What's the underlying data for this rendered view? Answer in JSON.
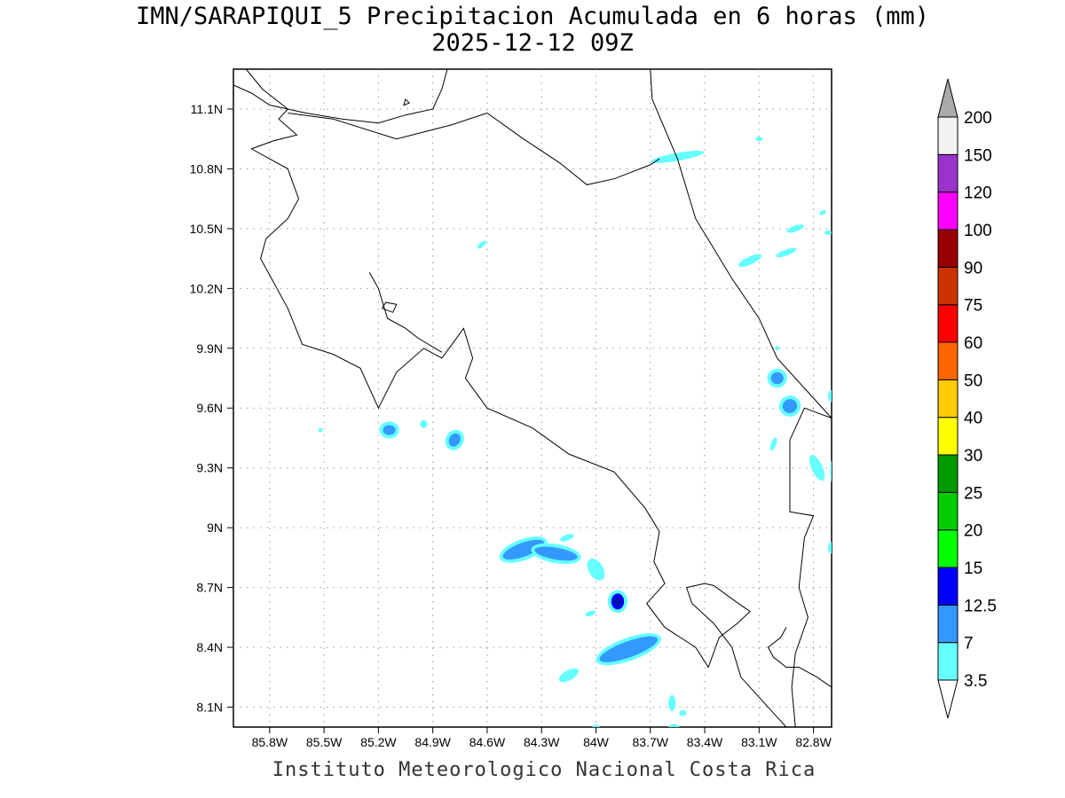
{
  "map": {
    "title": "IMN/SARAPIQUI_5 Precipitacion Acumulada en 6 horas (mm)",
    "subtitle": "2025-12-12 09Z",
    "credit": "Instituto Meteorologico Nacional Costa Rica",
    "extent": {
      "lon": [
        -86.0,
        -82.7
      ],
      "lat": [
        8.0,
        11.3
      ]
    },
    "lon_ticks": [
      {
        "value": -85.8,
        "label": "85.8W"
      },
      {
        "value": -85.5,
        "label": "85.5W"
      },
      {
        "value": -85.2,
        "label": "85.2W"
      },
      {
        "value": -84.9,
        "label": "84.9W"
      },
      {
        "value": -84.6,
        "label": "84.6W"
      },
      {
        "value": -84.3,
        "label": "84.3W"
      },
      {
        "value": -84.0,
        "label": "84W"
      },
      {
        "value": -83.7,
        "label": "83.7W"
      },
      {
        "value": -83.4,
        "label": "83.4W"
      },
      {
        "value": -83.1,
        "label": "83.1W"
      },
      {
        "value": -82.8,
        "label": "82.8W"
      }
    ],
    "lat_ticks": [
      {
        "value": 11.1,
        "label": "11.1N"
      },
      {
        "value": 10.8,
        "label": "10.8N"
      },
      {
        "value": 10.5,
        "label": "10.5N"
      },
      {
        "value": 10.2,
        "label": "10.2N"
      },
      {
        "value": 9.9,
        "label": "9.9N"
      },
      {
        "value": 9.6,
        "label": "9.6N"
      },
      {
        "value": 9.3,
        "label": "9.3N"
      },
      {
        "value": 9.0,
        "label": "9N"
      },
      {
        "value": 8.7,
        "label": "8.7N"
      },
      {
        "value": 8.4,
        "label": "8.4N"
      },
      {
        "value": 8.1,
        "label": "8.1N"
      }
    ],
    "grid": true
  },
  "colorbar": {
    "levels": [
      "3.5",
      "7",
      "12.5",
      "15",
      "20",
      "25",
      "30",
      "40",
      "50",
      "60",
      "75",
      "90",
      "100",
      "120",
      "150",
      "200"
    ],
    "colors": [
      "#66ffff",
      "#3399ff",
      "#0000ff",
      "#00ff00",
      "#00cc00",
      "#009900",
      "#ffff00",
      "#ffcc00",
      "#ff6600",
      "#ff0000",
      "#cc3300",
      "#990000",
      "#ff00ff",
      "#9933cc",
      "#f2f2f2",
      "#aaaaaa"
    ],
    "below_color": "#ffffff",
    "above_color": "#aaaaaa"
  },
  "precip_cells": [
    {
      "lon": -83.55,
      "lat": 10.86,
      "rx": 0.15,
      "ry": 0.02,
      "rot": -10,
      "class": "3.5"
    },
    {
      "lon": -83.1,
      "lat": 10.95,
      "rx": 0.02,
      "ry": 0.01,
      "rot": 0,
      "class": "3.5"
    },
    {
      "lon": -82.9,
      "lat": 10.5,
      "rx": 0.05,
      "ry": 0.015,
      "rot": -20,
      "class": "3.5"
    },
    {
      "lon": -82.75,
      "lat": 10.58,
      "rx": 0.02,
      "ry": 0.01,
      "rot": -30,
      "class": "3.5"
    },
    {
      "lon": -83.15,
      "lat": 10.34,
      "rx": 0.07,
      "ry": 0.02,
      "rot": -25,
      "class": "3.5"
    },
    {
      "lon": -82.95,
      "lat": 10.38,
      "rx": 0.06,
      "ry": 0.015,
      "rot": -20,
      "class": "3.5"
    },
    {
      "lon": -82.72,
      "lat": 10.48,
      "rx": 0.02,
      "ry": 0.01,
      "rot": 0,
      "class": "3.5"
    },
    {
      "lon": -84.63,
      "lat": 10.42,
      "rx": 0.03,
      "ry": 0.012,
      "rot": -40,
      "class": "3.5"
    },
    {
      "lon": -83.0,
      "lat": 9.75,
      "rx": 0.035,
      "ry": 0.03,
      "rot": 0,
      "class": "7"
    },
    {
      "lon": -83.0,
      "lat": 9.9,
      "rx": 0.01,
      "ry": 0.01,
      "rot": 0,
      "class": "3.5"
    },
    {
      "lon": -82.93,
      "lat": 9.61,
      "rx": 0.04,
      "ry": 0.035,
      "rot": -20,
      "class": "7"
    },
    {
      "lon": -83.02,
      "lat": 9.42,
      "rx": 0.015,
      "ry": 0.035,
      "rot": 20,
      "class": "3.5"
    },
    {
      "lon": -82.78,
      "lat": 9.3,
      "rx": 0.03,
      "ry": 0.07,
      "rot": -25,
      "class": "3.5"
    },
    {
      "lon": -82.66,
      "lat": 9.25,
      "rx": 0.025,
      "ry": 0.09,
      "rot": -10,
      "class": "7"
    },
    {
      "lon": -82.7,
      "lat": 9.66,
      "rx": 0.02,
      "ry": 0.03,
      "rot": 0,
      "class": "3.5"
    },
    {
      "lon": -82.7,
      "lat": 8.9,
      "rx": 0.02,
      "ry": 0.03,
      "rot": 0,
      "class": "3.5"
    },
    {
      "lon": -85.14,
      "lat": 9.49,
      "rx": 0.035,
      "ry": 0.025,
      "rot": 0,
      "class": "7"
    },
    {
      "lon": -84.95,
      "lat": 9.52,
      "rx": 0.02,
      "ry": 0.02,
      "rot": 0,
      "class": "3.5"
    },
    {
      "lon": -84.78,
      "lat": 9.44,
      "rx": 0.03,
      "ry": 0.035,
      "rot": 30,
      "class": "7"
    },
    {
      "lon": -85.52,
      "lat": 9.49,
      "rx": 0.008,
      "ry": 0.008,
      "rot": 0,
      "class": "3.5"
    },
    {
      "lon": -84.4,
      "lat": 8.89,
      "rx": 0.12,
      "ry": 0.035,
      "rot": -20,
      "class": "7"
    },
    {
      "lon": -84.22,
      "lat": 8.87,
      "rx": 0.12,
      "ry": 0.03,
      "rot": 10,
      "class": "7"
    },
    {
      "lon": -84.16,
      "lat": 8.95,
      "rx": 0.04,
      "ry": 0.015,
      "rot": -20,
      "class": "3.5"
    },
    {
      "lon": -84.0,
      "lat": 8.79,
      "rx": 0.04,
      "ry": 0.06,
      "rot": -30,
      "class": "3.5"
    },
    {
      "lon": -83.88,
      "lat": 8.63,
      "rx": 0.035,
      "ry": 0.04,
      "rot": 0,
      "class": "12.5"
    },
    {
      "lon": -84.03,
      "lat": 8.57,
      "rx": 0.03,
      "ry": 0.012,
      "rot": -20,
      "class": "3.5"
    },
    {
      "lon": -83.82,
      "lat": 8.39,
      "rx": 0.17,
      "ry": 0.04,
      "rot": -20,
      "class": "7"
    },
    {
      "lon": -84.15,
      "lat": 8.26,
      "rx": 0.06,
      "ry": 0.025,
      "rot": -30,
      "class": "3.5"
    },
    {
      "lon": -83.58,
      "lat": 8.12,
      "rx": 0.02,
      "ry": 0.04,
      "rot": 0,
      "class": "3.5"
    },
    {
      "lon": -83.52,
      "lat": 8.07,
      "rx": 0.02,
      "ry": 0.015,
      "rot": 0,
      "class": "3.5"
    },
    {
      "lon": -83.57,
      "lat": 8.0,
      "rx": 0.03,
      "ry": 0.015,
      "rot": 0,
      "class": "3.5"
    },
    {
      "lon": -84.0,
      "lat": 8.0,
      "rx": 0.02,
      "ry": 0.01,
      "rot": 0,
      "class": "3.5"
    }
  ],
  "coastlines": [
    {
      "name": "pacific-coast",
      "points": [
        [
          -85.93,
          11.3
        ],
        [
          -85.84,
          11.2
        ],
        [
          -85.7,
          11.1
        ],
        [
          -85.75,
          11.05
        ],
        [
          -85.65,
          10.97
        ],
        [
          -85.78,
          10.94
        ],
        [
          -85.9,
          10.9
        ],
        [
          -85.7,
          10.8
        ],
        [
          -85.64,
          10.65
        ],
        [
          -85.7,
          10.55
        ],
        [
          -85.82,
          10.45
        ],
        [
          -85.85,
          10.35
        ],
        [
          -85.76,
          10.2
        ],
        [
          -85.7,
          10.1
        ],
        [
          -85.62,
          9.92
        ],
        [
          -85.45,
          9.87
        ],
        [
          -85.3,
          9.8
        ],
        [
          -85.2,
          9.6
        ],
        [
          -85.1,
          9.78
        ],
        [
          -84.95,
          9.9
        ],
        [
          -84.85,
          9.85
        ],
        [
          -84.73,
          10.0
        ],
        [
          -84.68,
          9.85
        ],
        [
          -84.72,
          9.75
        ],
        [
          -84.6,
          9.6
        ],
        [
          -84.35,
          9.5
        ],
        [
          -84.15,
          9.37
        ],
        [
          -83.9,
          9.28
        ],
        [
          -83.73,
          9.1
        ],
        [
          -83.65,
          8.98
        ],
        [
          -83.68,
          8.83
        ],
        [
          -83.62,
          8.72
        ],
        [
          -83.72,
          8.62
        ],
        [
          -83.62,
          8.5
        ],
        [
          -83.45,
          8.4
        ],
        [
          -83.38,
          8.3
        ],
        [
          -83.32,
          8.45
        ],
        [
          -83.22,
          8.52
        ],
        [
          -83.15,
          8.58
        ],
        [
          -83.23,
          8.63
        ],
        [
          -83.35,
          8.71
        ],
        [
          -83.4,
          8.72
        ],
        [
          -83.5,
          8.7
        ],
        [
          -83.47,
          8.62
        ],
        [
          -83.35,
          8.52
        ],
        [
          -83.25,
          8.4
        ],
        [
          -83.2,
          8.25
        ],
        [
          -83.1,
          8.15
        ],
        [
          -83.0,
          8.05
        ],
        [
          -82.95,
          8.0
        ]
      ]
    },
    {
      "name": "nicoya-gulf-east",
      "points": [
        [
          -85.25,
          10.28
        ],
        [
          -85.2,
          10.2
        ],
        [
          -85.15,
          10.05
        ],
        [
          -85.05,
          10.0
        ],
        [
          -84.98,
          9.95
        ],
        [
          -84.85,
          9.88
        ]
      ]
    },
    {
      "name": "chira-island",
      "points": [
        [
          -85.18,
          10.1
        ],
        [
          -85.12,
          10.08
        ],
        [
          -85.1,
          10.12
        ],
        [
          -85.16,
          10.13
        ],
        [
          -85.18,
          10.1
        ]
      ]
    },
    {
      "name": "nicaragua-lake-shore",
      "points": [
        [
          -86.0,
          11.22
        ],
        [
          -85.9,
          11.18
        ],
        [
          -85.8,
          11.12
        ],
        [
          -85.6,
          11.08
        ],
        [
          -85.4,
          11.05
        ],
        [
          -85.2,
          11.03
        ],
        [
          -85.05,
          11.07
        ],
        [
          -84.9,
          11.1
        ],
        [
          -84.85,
          11.2
        ],
        [
          -84.82,
          11.3
        ]
      ]
    },
    {
      "name": "lake-islet",
      "points": [
        [
          -85.05,
          11.15
        ],
        [
          -85.03,
          11.13
        ],
        [
          -85.06,
          11.12
        ],
        [
          -85.05,
          11.15
        ]
      ]
    },
    {
      "name": "caribbean-coast",
      "points": [
        [
          -83.7,
          11.3
        ],
        [
          -83.69,
          11.15
        ],
        [
          -83.62,
          11.0
        ],
        [
          -83.55,
          10.85
        ],
        [
          -83.45,
          10.55
        ],
        [
          -83.25,
          10.25
        ],
        [
          -83.1,
          10.05
        ],
        [
          -83.0,
          9.85
        ],
        [
          -82.8,
          9.65
        ],
        [
          -82.7,
          9.55
        ]
      ]
    }
  ],
  "borders": [
    {
      "name": "nicaragua-costa-rica-border",
      "points": [
        [
          -85.7,
          11.08
        ],
        [
          -85.45,
          11.05
        ],
        [
          -85.1,
          10.95
        ],
        [
          -84.8,
          11.02
        ],
        [
          -84.6,
          11.08
        ],
        [
          -84.4,
          10.95
        ],
        [
          -84.2,
          10.83
        ],
        [
          -84.05,
          10.72
        ],
        [
          -83.9,
          10.75
        ],
        [
          -83.7,
          10.82
        ],
        [
          -83.65,
          10.85
        ]
      ]
    },
    {
      "name": "panama-costa-rica-border",
      "points": [
        [
          -82.7,
          9.55
        ],
        [
          -82.85,
          9.6
        ],
        [
          -82.9,
          9.5
        ],
        [
          -82.93,
          9.44
        ],
        [
          -82.93,
          9.08
        ],
        [
          -82.8,
          9.06
        ],
        [
          -82.85,
          8.95
        ],
        [
          -82.88,
          8.7
        ],
        [
          -82.83,
          8.55
        ],
        [
          -82.9,
          8.37
        ],
        [
          -82.92,
          8.2
        ],
        [
          -82.9,
          8.0
        ]
      ]
    },
    {
      "name": "panama-coast",
      "points": [
        [
          -82.7,
          8.2
        ],
        [
          -82.78,
          8.25
        ],
        [
          -82.88,
          8.3
        ],
        [
          -82.95,
          8.3
        ],
        [
          -83.02,
          8.35
        ],
        [
          -83.05,
          8.4
        ],
        [
          -82.98,
          8.45
        ],
        [
          -82.95,
          8.5
        ]
      ]
    }
  ]
}
